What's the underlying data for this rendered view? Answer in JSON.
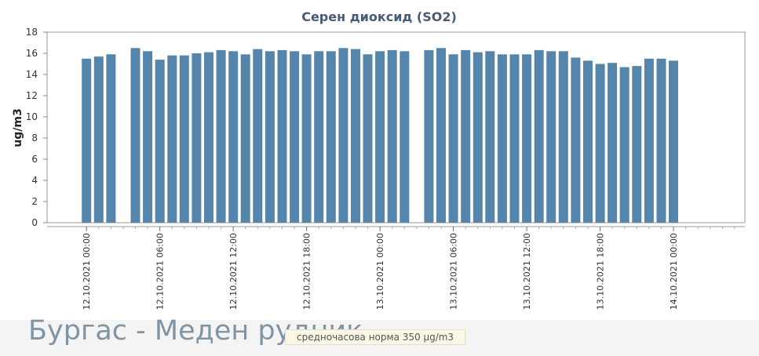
{
  "chart_data": {
    "type": "bar",
    "title": "Серен диоксид (SO2)",
    "ylabel": "ug/m3",
    "xlabel": "",
    "ylim": [
      0,
      18
    ],
    "yticks": [
      0,
      2,
      4,
      6,
      8,
      10,
      12,
      14,
      16,
      18
    ],
    "grid": false,
    "legend": "none",
    "bar_color": "#5585aa",
    "categories": [
      "12.10.2021 00:00",
      "12.10.2021 01:00",
      "12.10.2021 02:00",
      "12.10.2021 03:00",
      "12.10.2021 04:00",
      "12.10.2021 05:00",
      "12.10.2021 06:00",
      "12.10.2021 07:00",
      "12.10.2021 08:00",
      "12.10.2021 09:00",
      "12.10.2021 10:00",
      "12.10.2021 11:00",
      "12.10.2021 12:00",
      "12.10.2021 13:00",
      "12.10.2021 14:00",
      "12.10.2021 15:00",
      "12.10.2021 16:00",
      "12.10.2021 17:00",
      "12.10.2021 18:00",
      "12.10.2021 19:00",
      "12.10.2021 20:00",
      "12.10.2021 21:00",
      "12.10.2021 22:00",
      "12.10.2021 23:00",
      "13.10.2021 00:00",
      "13.10.2021 01:00",
      "13.10.2021 02:00",
      "13.10.2021 03:00",
      "13.10.2021 04:00",
      "13.10.2021 05:00",
      "13.10.2021 06:00",
      "13.10.2021 07:00",
      "13.10.2021 08:00",
      "13.10.2021 09:00",
      "13.10.2021 10:00",
      "13.10.2021 11:00",
      "13.10.2021 12:00",
      "13.10.2021 13:00",
      "13.10.2021 14:00",
      "13.10.2021 15:00",
      "13.10.2021 16:00",
      "13.10.2021 17:00",
      "13.10.2021 18:00",
      "13.10.2021 19:00",
      "13.10.2021 20:00",
      "13.10.2021 21:00",
      "13.10.2021 22:00",
      "13.10.2021 23:00",
      "14.10.2021 00:00",
      "14.10.2021 01:00",
      "14.10.2021 02:00",
      "14.10.2021 03:00",
      "14.10.2021 04:00",
      "14.10.2021 05:00"
    ],
    "values": [
      15.5,
      15.7,
      15.9,
      null,
      16.5,
      16.2,
      15.4,
      15.8,
      15.8,
      16.0,
      16.1,
      16.3,
      16.2,
      15.9,
      16.4,
      16.2,
      16.3,
      16.2,
      15.9,
      16.2,
      16.2,
      16.5,
      16.4,
      15.9,
      16.2,
      16.3,
      16.2,
      null,
      16.3,
      16.5,
      15.9,
      16.3,
      16.1,
      16.2,
      15.9,
      15.9,
      15.9,
      16.3,
      16.2,
      16.2,
      15.6,
      15.3,
      15.0,
      15.1,
      14.7,
      14.8,
      15.5,
      15.5,
      15.3,
      null,
      null,
      null,
      null,
      null
    ],
    "tick_labels": [
      "12.10.2021 00:00",
      "12.10.2021 06:00",
      "12.10.2021 12:00",
      "12.10.2021 18:00",
      "13.10.2021 00:00",
      "13.10.2021 06:00",
      "13.10.2021 12:00",
      "13.10.2021 18:00",
      "14.10.2021 00:00"
    ]
  },
  "station_name": "Бургас - Меден рудник",
  "norm_text": "средночасова норма 350 µg/m3"
}
